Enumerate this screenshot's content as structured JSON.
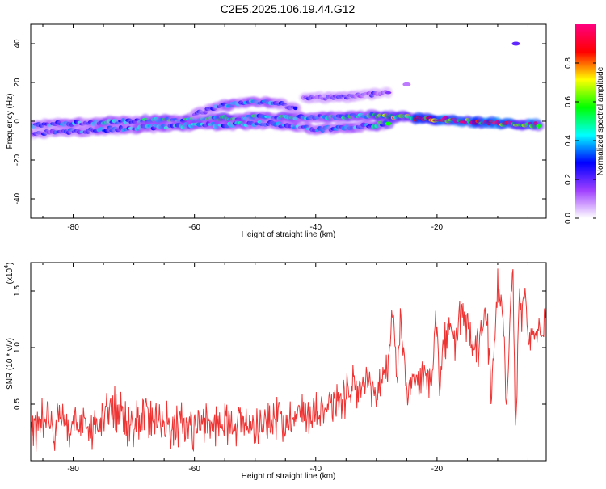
{
  "title": "C2E5.2025.106.19.44.G12",
  "chart_data": [
    {
      "type": "heatmap",
      "xlabel": "Height of straight line (km)",
      "ylabel": "Frequency (Hz)",
      "xlim": [
        -87,
        -2
      ],
      "ylim": [
        -50,
        50
      ],
      "xticks": [
        -80,
        -60,
        -40,
        -20
      ],
      "yticks": [
        -40,
        -20,
        0,
        20,
        40
      ],
      "colorbar": {
        "label": "Normalized spectral amplitude",
        "range": [
          0.0,
          1.0
        ],
        "ticks": [
          "0.0",
          "0.2",
          "0.4",
          "0.6",
          "0.8"
        ],
        "colormap": [
          "#ffffff",
          "#a040ff",
          "#0000ff",
          "#00ffff",
          "#00ff00",
          "#ffff00",
          "#ff0000",
          "#ff0080"
        ]
      },
      "ridges": [
        {
          "x": [
            -87,
            -80,
            -70,
            -60,
            -50,
            -40,
            -30,
            -20,
            -10,
            -3
          ],
          "y": [
            -2,
            -1,
            0,
            1,
            2,
            2,
            3,
            1,
            -1,
            -2
          ],
          "amplitude": [
            0.35,
            0.4,
            0.45,
            0.55,
            0.5,
            0.45,
            0.55,
            0.9,
            0.95,
            0.95
          ]
        },
        {
          "x": [
            -87,
            -78,
            -68,
            -58,
            -48,
            -40,
            -33,
            -28
          ],
          "y": [
            -6,
            -5,
            -3,
            -2,
            -1,
            -4,
            -3,
            -1
          ],
          "amplitude": [
            0.25,
            0.35,
            0.4,
            0.45,
            0.4,
            0.35,
            0.4,
            0.55
          ]
        },
        {
          "x": [
            -60,
            -55,
            -50,
            -46,
            -43
          ],
          "y": [
            4,
            8,
            10,
            9,
            6
          ],
          "amplitude": [
            0.3,
            0.4,
            0.45,
            0.35,
            0.3
          ]
        },
        {
          "x": [
            -42,
            -38,
            -33,
            -28
          ],
          "y": [
            12,
            12,
            13,
            15
          ],
          "amplitude": [
            0.2,
            0.25,
            0.25,
            0.2
          ]
        }
      ],
      "isolated_spots": [
        {
          "x": -7,
          "y": 40,
          "amplitude": 0.2
        },
        {
          "x": -25,
          "y": 19,
          "amplitude": 0.1
        }
      ]
    },
    {
      "type": "line",
      "xlabel": "Height of straight line (km)",
      "ylabel": "SNR (10 * v/v)",
      "scale_label": "(x10",
      "scale_exponent": "4",
      "xlim": [
        -87,
        -2
      ],
      "ylim": [
        0,
        1.75
      ],
      "xticks": [
        -80,
        -60,
        -40,
        -20
      ],
      "yticks": [
        "0.5",
        "1.0",
        "1.5"
      ],
      "color": "#ee3333",
      "series": [
        {
          "x": [
            -87,
            -85,
            -83,
            -80,
            -77,
            -74,
            -72,
            -70,
            -67,
            -64,
            -61,
            -58,
            -55,
            -52,
            -49,
            -46,
            -43,
            -40,
            -38,
            -36,
            -34,
            -32,
            -30,
            -29,
            -28,
            -27.5,
            -26.5,
            -26,
            -25,
            -24,
            -23,
            -22,
            -21,
            -20.2,
            -19.5,
            -19,
            -18,
            -17,
            -16,
            -15,
            -14,
            -13,
            -12,
            -11,
            -10,
            -9,
            -8.5,
            -8,
            -7.5,
            -7,
            -6.5,
            -6,
            -5.5,
            -5,
            -4,
            -3,
            -2
          ],
          "y": [
            0.25,
            0.4,
            0.3,
            0.35,
            0.28,
            0.45,
            0.38,
            0.3,
            0.42,
            0.3,
            0.32,
            0.3,
            0.35,
            0.33,
            0.3,
            0.38,
            0.4,
            0.45,
            0.5,
            0.55,
            0.6,
            0.65,
            0.6,
            0.75,
            0.8,
            1.4,
            0.7,
            1.3,
            0.6,
            0.7,
            0.65,
            0.8,
            0.7,
            1.25,
            0.6,
            1.0,
            1.15,
            1.05,
            1.3,
            1.2,
            0.95,
            1.0,
            1.35,
            0.6,
            1.55,
            1.2,
            0.45,
            1.3,
            1.72,
            0.2,
            1.45,
            1.3,
            1.5,
            1.05,
            1.1,
            1.15,
            1.25
          ]
        }
      ]
    }
  ]
}
